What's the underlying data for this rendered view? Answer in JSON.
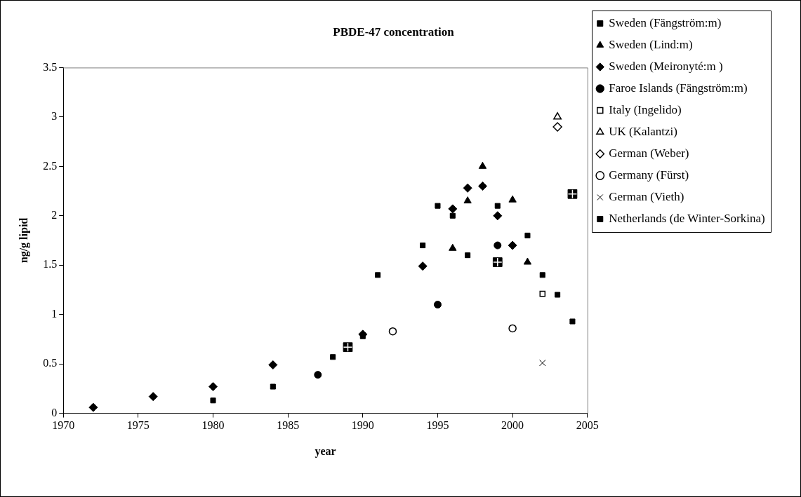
{
  "chart_data": {
    "type": "scatter",
    "title": "PBDE-47 concentration",
    "xlabel": "year",
    "ylabel": "ng/g lipid",
    "xlim": [
      1970,
      2005
    ],
    "xticks": [
      1970,
      1975,
      1980,
      1985,
      1990,
      1995,
      2000,
      2005
    ],
    "ylim": [
      0,
      3.5
    ],
    "yticks": [
      0,
      0.5,
      1,
      1.5,
      2,
      2.5,
      3,
      3.5
    ],
    "grid": false,
    "legend": "right",
    "series": [
      {
        "name": "Sweden (Fängström:m)",
        "color": "#000000",
        "marker": "square",
        "x": [
          1980,
          1984,
          1988,
          1990,
          1991,
          1994,
          1995,
          1996,
          1997,
          1999,
          2001,
          2002,
          2003,
          2004
        ],
        "values": [
          0.13,
          0.27,
          0.57,
          0.78,
          1.4,
          1.7,
          2.1,
          2.0,
          1.6,
          2.1,
          1.8,
          1.4,
          1.2,
          0.93
        ]
      },
      {
        "name": "Sweden (Lind:m)",
        "color": "#000000",
        "marker": "triangle",
        "x": [
          1996,
          1997,
          1998,
          2000,
          2001
        ],
        "values": [
          1.67,
          2.15,
          2.5,
          2.16,
          1.53
        ]
      },
      {
        "name": "Sweden (Meironyté:m )",
        "color": "#000000",
        "marker": "diamond",
        "x": [
          1972,
          1976,
          1980,
          1984,
          1990,
          1994,
          1996,
          1997,
          1998,
          1999,
          2000
        ],
        "values": [
          0.06,
          0.17,
          0.27,
          0.49,
          0.8,
          1.49,
          2.07,
          2.28,
          2.3,
          2.0,
          1.7
        ]
      },
      {
        "name": "Faroe Islands (Fängström:m)",
        "color": "#000000",
        "marker": "circle",
        "x": [
          1987,
          1995,
          1999
        ],
        "values": [
          0.39,
          1.1,
          1.7
        ]
      },
      {
        "name": "Italy (Ingelido)",
        "color": "#000000",
        "marker": "square",
        "x": [
          2002
        ],
        "values": [
          1.21
        ]
      },
      {
        "name": "UK (Kalantzi)",
        "color": "#000000",
        "marker": "triangle",
        "x": [
          2003
        ],
        "values": [
          3.0
        ]
      },
      {
        "name": "German (Weber)",
        "color": "#000000",
        "marker": "diamond",
        "x": [
          2003
        ],
        "values": [
          2.9
        ]
      },
      {
        "name": "Germany (Fürst)",
        "color": "#000000",
        "marker": "circle",
        "x": [
          1992,
          2000
        ],
        "values": [
          0.83,
          0.86
        ]
      },
      {
        "name": "German (Vieth)",
        "color": "#000000",
        "marker": "cross",
        "x": [
          2002
        ],
        "values": [
          0.51
        ]
      },
      {
        "name": "Netherlands (de Winter-Sorkina)",
        "color": "#000000",
        "marker": "square",
        "x": [
          1989,
          1999,
          2004
        ],
        "values": [
          0.67,
          1.53,
          2.22
        ]
      }
    ]
  }
}
